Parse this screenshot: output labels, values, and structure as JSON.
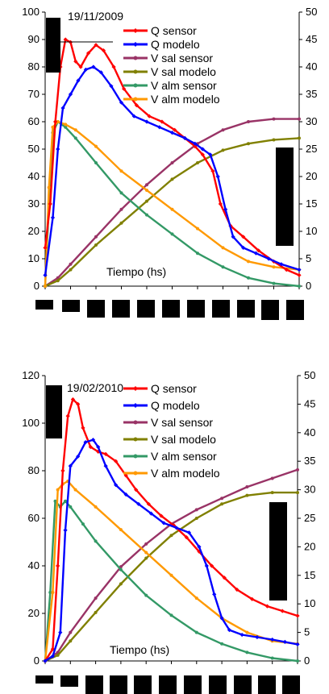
{
  "chart_data": [
    {
      "type": "line",
      "title": "19/11/2009",
      "annotation": "Tiempo (hs)",
      "ylim": [
        0,
        100
      ],
      "y2lim": [
        0,
        50
      ],
      "yticks": [
        0,
        10,
        20,
        30,
        40,
        50,
        60,
        70,
        80,
        90,
        100
      ],
      "y2ticks": [
        0,
        5,
        10,
        15,
        20,
        25,
        30,
        35,
        40,
        45,
        50
      ],
      "xlim": [
        0,
        1
      ],
      "grid": false,
      "legend": "top-right",
      "series": [
        {
          "name": "Q sensor",
          "axis": "left",
          "color": "#ff0000",
          "marker": "diamond",
          "x": [
            0,
            0.02,
            0.04,
            0.06,
            0.08,
            0.1,
            0.12,
            0.14,
            0.17,
            0.2,
            0.23,
            0.27,
            0.31,
            0.36,
            0.41,
            0.46,
            0.51,
            0.55,
            0.59,
            0.62,
            0.66,
            0.69,
            0.73,
            0.78,
            0.84,
            0.9,
            0.95,
            1.0
          ],
          "values": [
            14,
            30,
            60,
            80,
            90,
            89,
            82,
            80,
            85,
            88,
            86,
            80,
            72,
            66,
            62,
            60,
            57,
            54,
            51,
            48,
            42,
            30,
            22,
            18,
            13,
            9,
            6,
            4
          ]
        },
        {
          "name": "Q modelo",
          "axis": "left",
          "color": "#0000ff",
          "marker": "diamond",
          "x": [
            0,
            0.03,
            0.05,
            0.07,
            0.1,
            0.13,
            0.16,
            0.19,
            0.22,
            0.26,
            0.3,
            0.35,
            0.4,
            0.45,
            0.5,
            0.55,
            0.59,
            0.62,
            0.65,
            0.68,
            0.71,
            0.74,
            0.78,
            0.83,
            0.88,
            0.93,
            1.0
          ],
          "values": [
            4,
            25,
            50,
            65,
            70,
            75,
            79,
            80,
            78,
            73,
            67,
            62,
            60,
            58,
            56,
            54,
            52,
            50,
            48,
            40,
            28,
            18,
            14,
            12,
            10,
            8,
            6
          ]
        },
        {
          "name": "V sal sensor",
          "axis": "right",
          "color": "#993366",
          "marker": "circle",
          "x": [
            0,
            0.05,
            0.1,
            0.2,
            0.3,
            0.4,
            0.5,
            0.6,
            0.7,
            0.8,
            0.9,
            1.0
          ],
          "values": [
            0,
            1.5,
            4,
            9,
            14,
            18.5,
            22.5,
            26,
            28.5,
            30,
            30.5,
            30.5
          ]
        },
        {
          "name": "V sal modelo",
          "axis": "right",
          "color": "#808000",
          "marker": "circle",
          "x": [
            0,
            0.05,
            0.1,
            0.2,
            0.3,
            0.4,
            0.5,
            0.6,
            0.7,
            0.8,
            0.9,
            1.0
          ],
          "values": [
            0,
            1,
            3,
            7.5,
            11.5,
            15.5,
            19.5,
            22.5,
            24.8,
            26,
            26.7,
            27
          ]
        },
        {
          "name": "V alm sensor",
          "axis": "right",
          "color": "#339966",
          "marker": "circle",
          "x": [
            0,
            0.015,
            0.03,
            0.05,
            0.08,
            0.12,
            0.2,
            0.3,
            0.4,
            0.5,
            0.6,
            0.7,
            0.8,
            0.9,
            1.0
          ],
          "values": [
            0,
            15,
            28,
            30,
            29,
            27,
            22.5,
            17,
            13,
            9.5,
            6,
            3.5,
            1.5,
            0.5,
            0
          ]
        },
        {
          "name": "V alm modelo",
          "axis": "right",
          "color": "#ff9900",
          "marker": "circle",
          "x": [
            0,
            0.015,
            0.03,
            0.05,
            0.08,
            0.12,
            0.2,
            0.3,
            0.4,
            0.5,
            0.6,
            0.7,
            0.8,
            0.9,
            1.0
          ],
          "values": [
            0,
            18,
            29,
            30,
            29.5,
            28.5,
            25.5,
            21,
            17.5,
            14,
            10.5,
            7,
            4.5,
            3.5,
            3
          ]
        }
      ]
    },
    {
      "type": "line",
      "title": "19/02/2010",
      "annotation": "Tiempo (hs)",
      "ylim": [
        0,
        120
      ],
      "y2lim": [
        0,
        50
      ],
      "yticks": [
        0,
        20,
        40,
        60,
        80,
        100,
        120
      ],
      "y2ticks": [
        0,
        5,
        10,
        15,
        20,
        25,
        30,
        35,
        40,
        45,
        50
      ],
      "xlim": [
        0,
        1
      ],
      "grid": false,
      "legend": "top-right",
      "series": [
        {
          "name": "Q sensor",
          "axis": "left",
          "color": "#ff0000",
          "marker": "diamond",
          "x": [
            0,
            0.03,
            0.05,
            0.07,
            0.09,
            0.11,
            0.13,
            0.15,
            0.18,
            0.21,
            0.24,
            0.28,
            0.32,
            0.36,
            0.41,
            0.46,
            0.51,
            0.56,
            0.61,
            0.66,
            0.71,
            0.76,
            0.82,
            0.88,
            0.94,
            1.0
          ],
          "values": [
            0,
            5,
            40,
            80,
            103,
            110,
            108,
            98,
            90,
            88,
            87,
            84,
            78,
            72,
            66,
            61,
            57,
            52,
            46,
            40,
            35,
            30,
            26,
            23,
            21,
            19
          ]
        },
        {
          "name": "Q modelo",
          "axis": "left",
          "color": "#0000ff",
          "marker": "diamond",
          "x": [
            0,
            0.03,
            0.06,
            0.08,
            0.1,
            0.13,
            0.16,
            0.19,
            0.21,
            0.24,
            0.28,
            0.32,
            0.37,
            0.42,
            0.47,
            0.52,
            0.57,
            0.61,
            0.64,
            0.67,
            0.7,
            0.73,
            0.78,
            0.84,
            0.9,
            0.95,
            1.0
          ],
          "values": [
            0,
            2,
            12,
            55,
            82,
            86,
            92,
            93,
            90,
            82,
            74,
            70,
            66,
            62,
            58,
            56,
            54,
            48,
            40,
            28,
            18,
            13,
            11,
            10,
            9,
            8,
            7
          ]
        },
        {
          "name": "V sal sensor",
          "axis": "right",
          "color": "#993366",
          "marker": "circle",
          "x": [
            0,
            0.05,
            0.1,
            0.2,
            0.3,
            0.4,
            0.5,
            0.6,
            0.7,
            0.8,
            0.9,
            1.0
          ],
          "values": [
            0,
            1.5,
            5,
            11,
            16.5,
            20.5,
            24,
            26.5,
            28.5,
            30.5,
            32,
            33.5
          ]
        },
        {
          "name": "V sal modelo",
          "axis": "right",
          "color": "#808000",
          "marker": "circle",
          "x": [
            0,
            0.05,
            0.1,
            0.2,
            0.3,
            0.4,
            0.5,
            0.6,
            0.7,
            0.8,
            0.9,
            1.0
          ],
          "values": [
            0,
            1,
            3.5,
            8.5,
            13.5,
            18,
            22,
            25,
            27.5,
            29,
            29.5,
            29.5
          ]
        },
        {
          "name": "V alm sensor",
          "axis": "right",
          "color": "#339966",
          "marker": "circle",
          "x": [
            0,
            0.02,
            0.04,
            0.06,
            0.08,
            0.1,
            0.15,
            0.2,
            0.3,
            0.4,
            0.5,
            0.6,
            0.7,
            0.8,
            0.9,
            1.0
          ],
          "values": [
            0,
            12,
            28,
            27,
            28,
            27,
            24,
            21,
            16,
            11.5,
            8,
            5,
            3,
            1.5,
            0.5,
            0
          ]
        },
        {
          "name": "V alm modelo",
          "axis": "right",
          "color": "#ff9900",
          "marker": "circle",
          "x": [
            0,
            0.03,
            0.05,
            0.07,
            0.09,
            0.12,
            0.2,
            0.3,
            0.4,
            0.5,
            0.6,
            0.7,
            0.8,
            0.9,
            1.0
          ],
          "values": [
            0,
            12,
            30,
            31,
            31.5,
            30,
            27,
            23,
            19,
            15,
            11,
            7.5,
            5,
            3.5,
            3
          ]
        }
      ]
    }
  ]
}
